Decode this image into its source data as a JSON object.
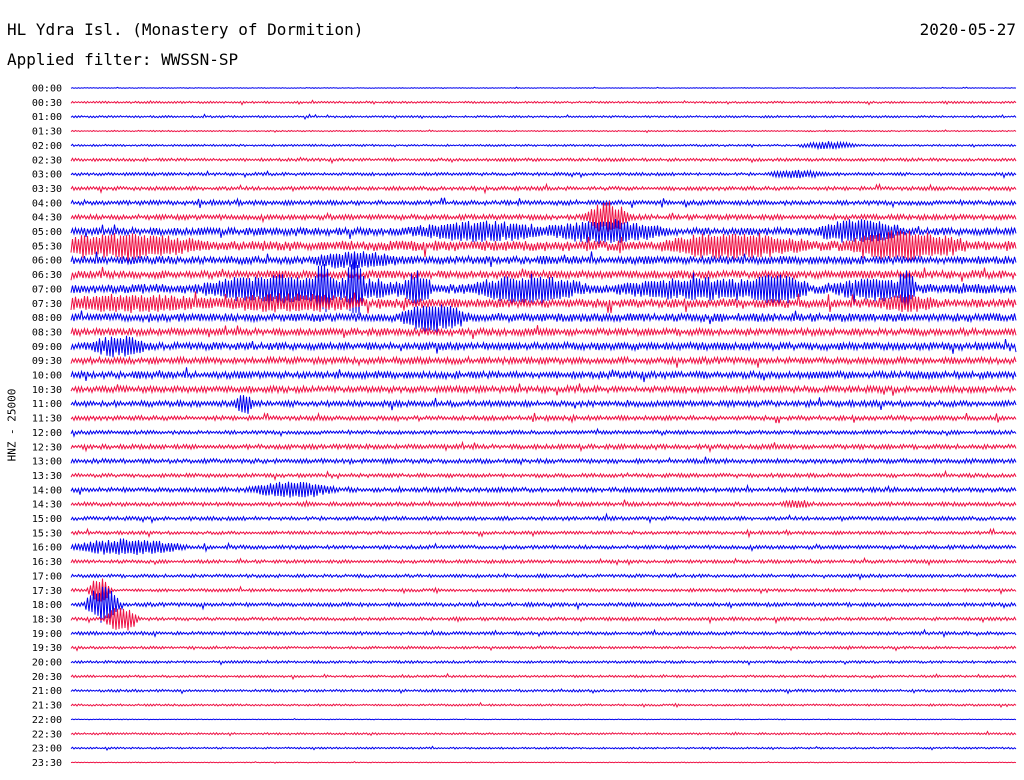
{
  "header": {
    "title": "HL Ydra Isl. (Monastery of Dormition)",
    "date": "2020-05-27",
    "filter": "Applied filter: WWSSN-SP",
    "ylabel": "HNZ - 25000"
  },
  "chart_data": {
    "type": "line",
    "title": "HL Ydra Isl. (Monastery of Dormition)",
    "subtitle": "Applied filter: WWSSN-SP",
    "ylabel": "HNZ - 25000",
    "date": "2020-05-27",
    "colors": {
      "even_rows": "#0000ee",
      "odd_rows": "#ee1144"
    },
    "rows": [
      "00:00",
      "00:30",
      "01:00",
      "01:30",
      "02:00",
      "02:30",
      "03:00",
      "03:30",
      "04:00",
      "04:30",
      "05:00",
      "05:30",
      "06:00",
      "06:30",
      "07:00",
      "07:30",
      "08:00",
      "08:30",
      "09:00",
      "09:30",
      "10:00",
      "10:30",
      "11:00",
      "11:30",
      "12:00",
      "12:30",
      "13:00",
      "13:30",
      "14:00",
      "14:30",
      "15:00",
      "15:30",
      "16:00",
      "16:30",
      "17:00",
      "17:30",
      "18:00",
      "18:30",
      "19:00",
      "19:30",
      "20:00",
      "20:30",
      "21:00",
      "21:30",
      "22:00",
      "22:30",
      "23:00",
      "23:30"
    ],
    "noise_level": [
      0.3,
      0.8,
      0.8,
      0.5,
      0.8,
      1.2,
      1.2,
      1.5,
      1.8,
      2.0,
      3.0,
      4.0,
      3.2,
      3.0,
      3.8,
      3.5,
      3.2,
      2.8,
      3.0,
      2.6,
      2.8,
      2.5,
      2.3,
      1.8,
      1.5,
      1.8,
      1.8,
      1.5,
      1.8,
      1.6,
      1.5,
      1.3,
      1.5,
      1.3,
      1.3,
      1.2,
      1.5,
      1.3,
      1.3,
      1.0,
      1.0,
      0.9,
      1.0,
      0.8,
      0.3,
      0.8,
      0.7,
      0.3
    ],
    "events": [
      {
        "row": 4,
        "minute": 24,
        "amplitude": 3,
        "duration": 1.0
      },
      {
        "row": 6,
        "minute": 23,
        "amplitude": 3,
        "duration": 1.0
      },
      {
        "row": 9,
        "minute": 17,
        "amplitude": 14,
        "duration": 0.8
      },
      {
        "row": 10,
        "minute": 13,
        "amplitude": 8,
        "duration": 2.5
      },
      {
        "row": 10,
        "minute": 17,
        "amplitude": 10,
        "duration": 2.0
      },
      {
        "row": 10,
        "minute": 25,
        "amplitude": 10,
        "duration": 1.5
      },
      {
        "row": 11,
        "minute": 1.5,
        "amplitude": 9,
        "duration": 3.0
      },
      {
        "row": 11,
        "minute": 21,
        "amplitude": 10,
        "duration": 2.5
      },
      {
        "row": 11,
        "minute": 26.5,
        "amplitude": 12,
        "duration": 2.0
      },
      {
        "row": 12,
        "minute": 9,
        "amplitude": 6,
        "duration": 1.5
      },
      {
        "row": 14,
        "minute": 6,
        "amplitude": 10,
        "duration": 2.0
      },
      {
        "row": 14,
        "minute": 8.5,
        "amplitude": 8,
        "duration": 2.5
      },
      {
        "row": 14,
        "minute": 9,
        "amplitude": 26,
        "duration": 0.3
      },
      {
        "row": 14,
        "minute": 8,
        "amplitude": 18,
        "duration": 0.3
      },
      {
        "row": 14,
        "minute": 11,
        "amplitude": 14,
        "duration": 0.5
      },
      {
        "row": 14,
        "minute": 14.5,
        "amplitude": 11,
        "duration": 2.0
      },
      {
        "row": 14,
        "minute": 20,
        "amplitude": 8,
        "duration": 3.0
      },
      {
        "row": 14,
        "minute": 22.5,
        "amplitude": 10,
        "duration": 1.0
      },
      {
        "row": 14,
        "minute": 25.5,
        "amplitude": 8,
        "duration": 1.5
      },
      {
        "row": 14,
        "minute": 26.5,
        "amplitude": 14,
        "duration": 0.3
      },
      {
        "row": 15,
        "minute": 2,
        "amplitude": 6,
        "duration": 3.0
      },
      {
        "row": 15,
        "minute": 7,
        "amplitude": 6,
        "duration": 2.5
      },
      {
        "row": 15,
        "minute": 26.5,
        "amplitude": 6,
        "duration": 1.0
      },
      {
        "row": 16,
        "minute": 11.5,
        "amplitude": 12,
        "duration": 1.2
      },
      {
        "row": 18,
        "minute": 1.5,
        "amplitude": 8,
        "duration": 1.0
      },
      {
        "row": 22,
        "minute": 5.5,
        "amplitude": 10,
        "duration": 0.3
      },
      {
        "row": 28,
        "minute": 7,
        "amplitude": 7,
        "duration": 1.5
      },
      {
        "row": 29,
        "minute": 23,
        "amplitude": 3,
        "duration": 0.5
      },
      {
        "row": 32,
        "minute": 1.8,
        "amplitude": 7,
        "duration": 2.0
      },
      {
        "row": 35,
        "minute": 0.9,
        "amplitude": 12,
        "duration": 0.4
      },
      {
        "row": 36,
        "minute": 1.0,
        "amplitude": 18,
        "duration": 0.6
      },
      {
        "row": 37,
        "minute": 1.6,
        "amplitude": 13,
        "duration": 0.6
      }
    ]
  }
}
